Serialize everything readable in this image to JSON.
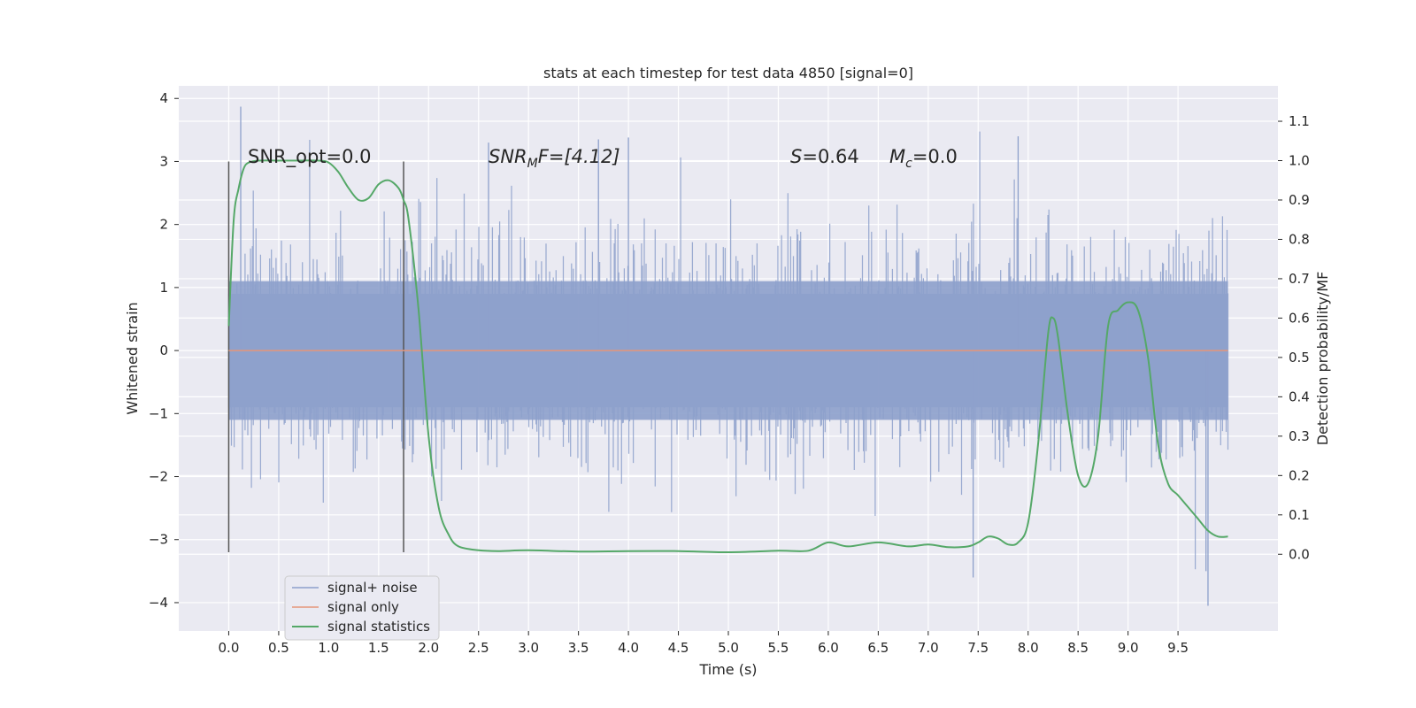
{
  "chart_data": {
    "type": "line",
    "title": "stats at each timestep for test data 4850 [signal=0]",
    "xlabel": "Time (s)",
    "ylabel": "Whitened strain",
    "y2label": "Detection probability/MF",
    "xlim": [
      -0.5,
      10.5
    ],
    "ylim": [
      -4.45,
      4.2
    ],
    "y2lim": [
      -0.195,
      1.19
    ],
    "x_ticks": [
      0.0,
      0.5,
      1.0,
      1.5,
      2.0,
      2.5,
      3.0,
      3.5,
      4.0,
      4.5,
      5.0,
      5.5,
      6.0,
      6.5,
      7.0,
      7.5,
      8.0,
      8.5,
      9.0,
      9.5
    ],
    "y_ticks": [
      -4,
      -3,
      -2,
      -1,
      0,
      1,
      2,
      3,
      4
    ],
    "y2_ticks": [
      0.0,
      0.1,
      0.2,
      0.3,
      0.4,
      0.5,
      0.6,
      0.7,
      0.8,
      0.9,
      1.0,
      1.1
    ],
    "grid": true,
    "legend_position": "lower-left",
    "annotations": {
      "snr_opt": "SNR_opt=0.0",
      "snr_mf_base": "SNR",
      "snr_mf_sub": "M",
      "snr_mf_rest": "F=[4.12]",
      "s_label": "S",
      "s_value": "=0.64",
      "mc_label": "M",
      "mc_sub": "c",
      "mc_value": "=0.0"
    },
    "vertical_lines_x": [
      0.0,
      1.75
    ],
    "series": [
      {
        "name": "signal+ noise",
        "color": "#8da0cb",
        "description_values": "dense noise samples, roughly within -3.6 to 3.9",
        "x_range": [
          0.0,
          10.0
        ],
        "peaks": [
          [
            0.12,
            3.87
          ],
          [
            2.6,
            3.3
          ],
          [
            3.7,
            3.35
          ],
          [
            4.0,
            3.38
          ],
          [
            7.9,
            3.4
          ],
          [
            9.8,
            -4.05
          ],
          [
            7.45,
            -3.6
          ],
          [
            9.78,
            -3.5
          ]
        ]
      },
      {
        "name": "signal only",
        "color": "#e5967a",
        "x": [
          0.0,
          10.0
        ],
        "y": [
          0.0,
          0.0
        ]
      },
      {
        "name": "signal statistics",
        "color": "#55a868",
        "axis": "right",
        "x": [
          0.0,
          0.05,
          0.1,
          0.15,
          0.2,
          0.3,
          0.5,
          0.7,
          0.9,
          1.0,
          1.1,
          1.2,
          1.3,
          1.4,
          1.5,
          1.6,
          1.7,
          1.75,
          1.8,
          1.9,
          2.0,
          2.1,
          2.2,
          2.3,
          2.5,
          2.7,
          3.0,
          3.5,
          4.0,
          4.5,
          5.0,
          5.5,
          5.8,
          6.0,
          6.2,
          6.5,
          6.8,
          7.0,
          7.2,
          7.4,
          7.5,
          7.6,
          7.7,
          7.8,
          7.9,
          8.0,
          8.1,
          8.2,
          8.25,
          8.3,
          8.4,
          8.5,
          8.6,
          8.7,
          8.8,
          8.9,
          9.0,
          9.1,
          9.2,
          9.3,
          9.4,
          9.5,
          9.6,
          9.7,
          9.8,
          9.9,
          10.0
        ],
        "y": [
          0.58,
          0.85,
          0.93,
          0.98,
          0.995,
          1.0,
          1.0,
          1.0,
          1.0,
          0.995,
          0.97,
          0.93,
          0.9,
          0.905,
          0.94,
          0.95,
          0.93,
          0.9,
          0.85,
          0.62,
          0.3,
          0.12,
          0.05,
          0.02,
          0.01,
          0.008,
          0.01,
          0.007,
          0.008,
          0.008,
          0.005,
          0.009,
          0.009,
          0.03,
          0.02,
          0.03,
          0.02,
          0.025,
          0.018,
          0.02,
          0.03,
          0.045,
          0.04,
          0.025,
          0.03,
          0.08,
          0.28,
          0.56,
          0.6,
          0.55,
          0.35,
          0.2,
          0.18,
          0.3,
          0.58,
          0.62,
          0.64,
          0.62,
          0.5,
          0.28,
          0.18,
          0.15,
          0.12,
          0.09,
          0.06,
          0.045,
          0.045
        ]
      }
    ]
  }
}
